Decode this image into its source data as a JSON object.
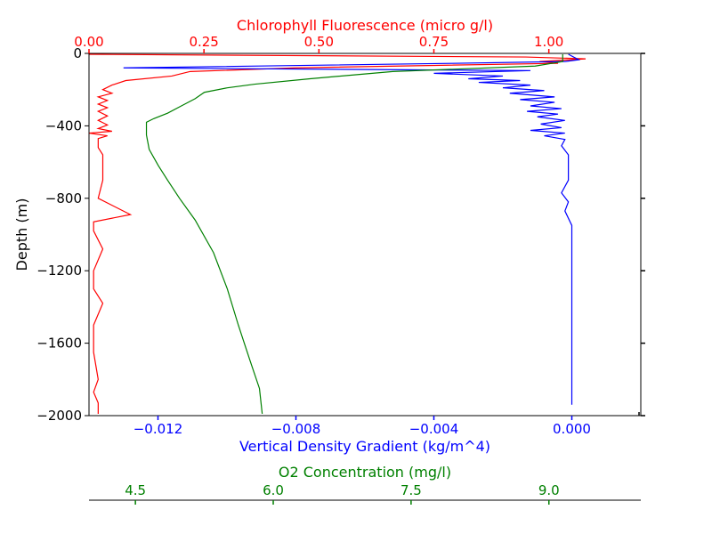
{
  "chart_data": {
    "type": "line",
    "title": "",
    "y_axis": {
      "label": "Depth (m)",
      "range": [
        -2000,
        0
      ],
      "ticks": [
        0,
        -400,
        -800,
        -1200,
        -1600,
        -2000
      ],
      "tick_labels": [
        "0",
        "−400",
        "−800",
        "−1200",
        "−1600",
        "−2000"
      ]
    },
    "x_axes": [
      {
        "id": "chlorophyll",
        "label": "Chlorophyll Fluorescence (micro g/l)",
        "position": "top",
        "color": "#ff0000",
        "range": [
          0,
          1.2
        ],
        "ticks": [
          0,
          0.25,
          0.5,
          0.75,
          1.0
        ],
        "tick_labels": [
          "0.00",
          "0.25",
          "0.50",
          "0.75",
          "1.00"
        ]
      },
      {
        "id": "density",
        "label": "Vertical Density Gradient (kg/m^4)",
        "position": "bottom",
        "color": "#0000ff",
        "range": [
          -0.014,
          0.002
        ],
        "ticks": [
          -0.012,
          -0.008,
          -0.004,
          0.0
        ],
        "tick_labels": [
          "−0.012",
          "−0.008",
          "−0.004",
          "0.000"
        ]
      },
      {
        "id": "oxygen",
        "label": "O2 Concentration (mg/l)",
        "position": "bottom-offset",
        "color": "#008000",
        "range": [
          3.995,
          10.0
        ],
        "ticks": [
          4.5,
          6.0,
          7.5,
          9.0
        ],
        "tick_labels": [
          "4.5",
          "6.0",
          "7.5",
          "9.0"
        ]
      }
    ],
    "series": [
      {
        "axis": "chlorophyll",
        "color": "#ff0000",
        "points": [
          [
            0.0,
            -5
          ],
          [
            0.95,
            -20
          ],
          [
            1.08,
            -30
          ],
          [
            0.98,
            -45
          ],
          [
            1.02,
            -55
          ],
          [
            0.78,
            -65
          ],
          [
            0.45,
            -80
          ],
          [
            0.22,
            -100
          ],
          [
            0.18,
            -125
          ],
          [
            0.08,
            -150
          ],
          [
            0.05,
            -175
          ],
          [
            0.03,
            -200
          ],
          [
            0.05,
            -220
          ],
          [
            0.02,
            -240
          ],
          [
            0.04,
            -260
          ],
          [
            0.02,
            -280
          ],
          [
            0.04,
            -300
          ],
          [
            0.02,
            -320
          ],
          [
            0.04,
            -345
          ],
          [
            0.02,
            -370
          ],
          [
            0.04,
            -395
          ],
          [
            0.02,
            -415
          ],
          [
            0.05,
            -430
          ],
          [
            0.0,
            -440
          ],
          [
            0.04,
            -455
          ],
          [
            0.02,
            -470
          ],
          [
            0.02,
            -520
          ],
          [
            0.03,
            -560
          ],
          [
            0.03,
            -700
          ],
          [
            0.02,
            -800
          ],
          [
            0.09,
            -890
          ],
          [
            0.01,
            -930
          ],
          [
            0.01,
            -980
          ],
          [
            0.03,
            -1080
          ],
          [
            0.01,
            -1200
          ],
          [
            0.01,
            -1300
          ],
          [
            0.03,
            -1380
          ],
          [
            0.01,
            -1500
          ],
          [
            0.01,
            -1650
          ],
          [
            0.02,
            -1800
          ],
          [
            0.01,
            -1870
          ],
          [
            0.02,
            -1930
          ],
          [
            0.02,
            -1990
          ]
        ]
      },
      {
        "axis": "density",
        "color": "#0000ff",
        "points": [
          [
            -0.0001,
            -5
          ],
          [
            0.0001,
            -25
          ],
          [
            0.0002,
            -35
          ],
          [
            -0.0002,
            -45
          ],
          [
            -0.0035,
            -55
          ],
          [
            -0.013,
            -80
          ],
          [
            -0.0012,
            -95
          ],
          [
            -0.004,
            -110
          ],
          [
            -0.002,
            -125
          ],
          [
            -0.003,
            -140
          ],
          [
            -0.0015,
            -150
          ],
          [
            -0.0027,
            -160
          ],
          [
            -0.0012,
            -175
          ],
          [
            -0.002,
            -190
          ],
          [
            -0.0008,
            -205
          ],
          [
            -0.0018,
            -220
          ],
          [
            -0.0005,
            -240
          ],
          [
            -0.0015,
            -255
          ],
          [
            -0.0005,
            -270
          ],
          [
            -0.0012,
            -290
          ],
          [
            -0.0003,
            -305
          ],
          [
            -0.0013,
            -320
          ],
          [
            -0.0004,
            -335
          ],
          [
            -0.001,
            -350
          ],
          [
            -0.0002,
            -370
          ],
          [
            -0.0009,
            -390
          ],
          [
            -0.0003,
            -410
          ],
          [
            -0.0012,
            -425
          ],
          [
            -0.0002,
            -440
          ],
          [
            -0.0008,
            -455
          ],
          [
            -0.0002,
            -475
          ],
          [
            -0.0003,
            -510
          ],
          [
            -0.0001,
            -560
          ],
          [
            -0.0001,
            -700
          ],
          [
            -0.0003,
            -770
          ],
          [
            -0.0001,
            -820
          ],
          [
            -0.0002,
            -870
          ],
          [
            0.0,
            -950
          ],
          [
            0.0,
            -1200
          ],
          [
            0.0,
            -1500
          ],
          [
            0.0,
            -1800
          ],
          [
            0.0,
            -1940
          ]
        ]
      },
      {
        "axis": "oxygen",
        "color": "#008000",
        "points": [
          [
            9.15,
            -5
          ],
          [
            9.15,
            -45
          ],
          [
            8.85,
            -70
          ],
          [
            7.3,
            -100
          ],
          [
            6.4,
            -140
          ],
          [
            5.8,
            -170
          ],
          [
            5.5,
            -190
          ],
          [
            5.25,
            -215
          ],
          [
            5.15,
            -250
          ],
          [
            5.0,
            -290
          ],
          [
            4.85,
            -330
          ],
          [
            4.7,
            -360
          ],
          [
            4.62,
            -380
          ],
          [
            4.62,
            -450
          ],
          [
            4.65,
            -530
          ],
          [
            4.75,
            -620
          ],
          [
            4.85,
            -700
          ],
          [
            4.98,
            -800
          ],
          [
            5.15,
            -920
          ],
          [
            5.35,
            -1100
          ],
          [
            5.5,
            -1300
          ],
          [
            5.62,
            -1500
          ],
          [
            5.75,
            -1700
          ],
          [
            5.85,
            -1850
          ],
          [
            5.88,
            -1990
          ]
        ]
      }
    ]
  }
}
